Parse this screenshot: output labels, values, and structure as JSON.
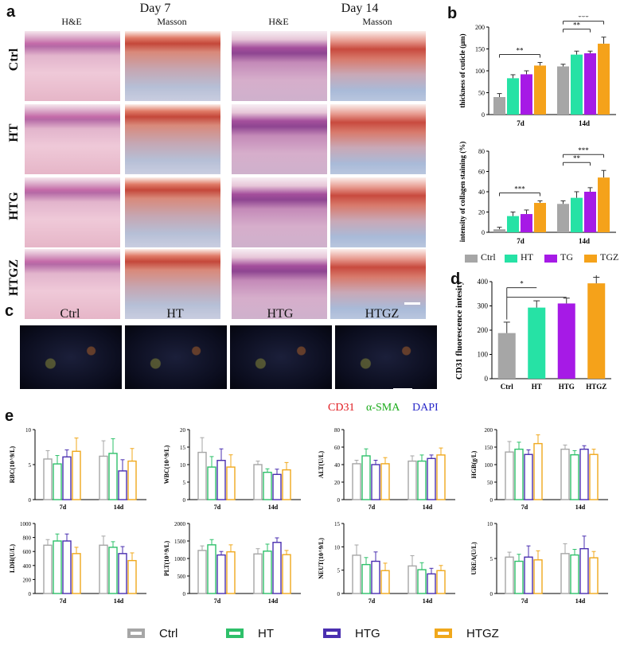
{
  "panel_a": {
    "label": "a",
    "day_headers": [
      "Day 7",
      "Day 14"
    ],
    "stain_headers": [
      "H&E",
      "Masson",
      "H&E",
      "Masson"
    ],
    "row_labels": [
      "Ctrl",
      "HT",
      "HTG",
      "HTGZ"
    ]
  },
  "panel_b": {
    "label": "b"
  },
  "panel_c": {
    "label": "c",
    "column_labels": [
      "Ctrl",
      "HT",
      "HTG",
      "HTGZ"
    ],
    "channels": [
      {
        "name": "CD31",
        "color": "#e0191e"
      },
      {
        "name": "α-SMA",
        "color": "#1aab1a"
      },
      {
        "name": "DAPI",
        "color": "#2727c9"
      }
    ]
  },
  "panel_d": {
    "label": "d"
  },
  "panel_e": {
    "label": "e"
  },
  "colors": {
    "Ctrl": "#a6a6a6",
    "HT": "#26e2a5",
    "TG": "#a61ae6",
    "TGZ": "#f5a21a",
    "HTG_outline": "#4a2fb0",
    "HTGZ_outline": "#f0a81c",
    "HT_outline": "#2ec06a"
  },
  "legend_b": [
    "Ctrl",
    "HT",
    "TG",
    "TGZ"
  ],
  "legend_e": [
    "Ctrl",
    "HT",
    "HTG",
    "HTGZ"
  ],
  "chart_data": [
    {
      "id": "b1",
      "type": "bar",
      "title": "",
      "ylabel": "thickness of cuticle (μm)",
      "categories": [
        "7d",
        "14d"
      ],
      "ylim": [
        0,
        200
      ],
      "yticks": [
        0,
        50,
        100,
        150,
        200
      ],
      "series": [
        {
          "name": "Ctrl",
          "values": [
            40,
            110
          ],
          "errors": [
            8,
            5
          ]
        },
        {
          "name": "HT",
          "values": [
            83,
            137
          ],
          "errors": [
            8,
            8
          ]
        },
        {
          "name": "TG",
          "values": [
            92,
            140
          ],
          "errors": [
            8,
            5
          ]
        },
        {
          "name": "TGZ",
          "values": [
            112,
            162
          ],
          "errors": [
            7,
            15
          ]
        }
      ],
      "significance": [
        {
          "group": "7d",
          "label": "**"
        },
        {
          "group": "14d",
          "label": "***"
        },
        {
          "group": "14d",
          "label": "**"
        }
      ]
    },
    {
      "id": "b2",
      "type": "bar",
      "title": "",
      "ylabel": "intensity of collagen staining (%)",
      "categories": [
        "7d",
        "14d"
      ],
      "ylim": [
        0,
        80
      ],
      "yticks": [
        0,
        20,
        40,
        60,
        80
      ],
      "series": [
        {
          "name": "Ctrl",
          "values": [
            3,
            28
          ],
          "errors": [
            2,
            3
          ]
        },
        {
          "name": "HT",
          "values": [
            16,
            34
          ],
          "errors": [
            4,
            6
          ]
        },
        {
          "name": "TG",
          "values": [
            18,
            40
          ],
          "errors": [
            4,
            4
          ]
        },
        {
          "name": "TGZ",
          "values": [
            29,
            54
          ],
          "errors": [
            2,
            7
          ]
        }
      ],
      "significance": [
        {
          "group": "7d",
          "label": "***"
        },
        {
          "group": "14d",
          "label": "***"
        },
        {
          "group": "14d",
          "label": "**"
        }
      ]
    },
    {
      "id": "d",
      "type": "bar",
      "title": "",
      "ylabel": "CD31 fluorescence intesity",
      "categories": [
        "Ctrl",
        "HT",
        "HTG",
        "HTGZ"
      ],
      "ylim": [
        0,
        400
      ],
      "yticks": [
        0,
        100,
        200,
        300,
        400
      ],
      "values": [
        188,
        293,
        310,
        393
      ],
      "errors": [
        45,
        28,
        22,
        25
      ],
      "significance": [
        "**",
        "*"
      ]
    },
    {
      "id": "e1",
      "type": "bar",
      "ylabel": "RBC(10^9/L)",
      "ylim": [
        0,
        10
      ],
      "yticks": [
        0,
        5,
        10
      ],
      "categories": [
        "7d",
        "14d"
      ],
      "series": [
        {
          "name": "Ctrl",
          "values": [
            5.8,
            6.2
          ],
          "errors": [
            1.2,
            2.2
          ]
        },
        {
          "name": "HT",
          "values": [
            5.1,
            6.6
          ],
          "errors": [
            1.2,
            2.1
          ]
        },
        {
          "name": "HTG",
          "values": [
            6.1,
            4.1
          ],
          "errors": [
            1.0,
            1.6
          ]
        },
        {
          "name": "HTGZ",
          "values": [
            6.9,
            5.5
          ],
          "errors": [
            1.9,
            1.8
          ]
        }
      ]
    },
    {
      "id": "e2",
      "type": "bar",
      "ylabel": "WBC(10^9/L)",
      "ylim": [
        0,
        20
      ],
      "yticks": [
        0,
        5,
        10,
        15,
        20
      ],
      "categories": [
        "7d",
        "14d"
      ],
      "series": [
        {
          "name": "Ctrl",
          "values": [
            13.5,
            10
          ],
          "errors": [
            4.2,
            1.0
          ]
        },
        {
          "name": "HT",
          "values": [
            9.3,
            7.8
          ],
          "errors": [
            3.0,
            1.0
          ]
        },
        {
          "name": "HTG",
          "values": [
            11.2,
            7.2
          ],
          "errors": [
            3.3,
            1.5
          ]
        },
        {
          "name": "HTGZ",
          "values": [
            9.3,
            8.5
          ],
          "errors": [
            3.5,
            2.1
          ]
        }
      ]
    },
    {
      "id": "e3",
      "type": "bar",
      "ylabel": "ALT(U/L)",
      "ylim": [
        0,
        80
      ],
      "yticks": [
        0,
        20,
        40,
        60,
        80
      ],
      "categories": [
        "7d",
        "14d"
      ],
      "series": [
        {
          "name": "Ctrl",
          "values": [
            41,
            44
          ],
          "errors": [
            4,
            6
          ]
        },
        {
          "name": "HT",
          "values": [
            50,
            44
          ],
          "errors": [
            8,
            7
          ]
        },
        {
          "name": "HTG",
          "values": [
            40,
            47
          ],
          "errors": [
            5,
            4
          ]
        },
        {
          "name": "HTGZ",
          "values": [
            41,
            51
          ],
          "errors": [
            7,
            8
          ]
        }
      ]
    },
    {
      "id": "e4",
      "type": "bar",
      "ylabel": "HGB(g/L)",
      "ylim": [
        0,
        200
      ],
      "yticks": [
        0,
        50,
        100,
        150,
        200
      ],
      "categories": [
        "7d",
        "14d"
      ],
      "series": [
        {
          "name": "Ctrl",
          "values": [
            136,
            144
          ],
          "errors": [
            30,
            12
          ]
        },
        {
          "name": "HT",
          "values": [
            144,
            128
          ],
          "errors": [
            20,
            12
          ]
        },
        {
          "name": "HTG",
          "values": [
            129,
            144
          ],
          "errors": [
            13,
            10
          ]
        },
        {
          "name": "HTGZ",
          "values": [
            160,
            129
          ],
          "errors": [
            25,
            15
          ]
        }
      ]
    },
    {
      "id": "e5",
      "type": "bar",
      "ylabel": "LDH(U/L)",
      "ylim": [
        0,
        1000
      ],
      "yticks": [
        0,
        200,
        400,
        600,
        800,
        1000
      ],
      "categories": [
        "7d",
        "14d"
      ],
      "series": [
        {
          "name": "Ctrl",
          "values": [
            690,
            690
          ],
          "errors": [
            80,
            130
          ]
        },
        {
          "name": "HT",
          "values": [
            750,
            660
          ],
          "errors": [
            100,
            80
          ]
        },
        {
          "name": "HTG",
          "values": [
            750,
            570
          ],
          "errors": [
            100,
            100
          ]
        },
        {
          "name": "HTGZ",
          "values": [
            570,
            470
          ],
          "errors": [
            90,
            110
          ]
        }
      ]
    },
    {
      "id": "e6",
      "type": "bar",
      "ylabel": "PLT(10^9/L)",
      "ylim": [
        0,
        2000
      ],
      "yticks": [
        0,
        500,
        1000,
        1500,
        2000
      ],
      "categories": [
        "7d",
        "14d"
      ],
      "series": [
        {
          "name": "Ctrl",
          "values": [
            1230,
            1130
          ],
          "errors": [
            130,
            150
          ]
        },
        {
          "name": "HT",
          "values": [
            1390,
            1210
          ],
          "errors": [
            150,
            200
          ]
        },
        {
          "name": "HTG",
          "values": [
            1100,
            1460
          ],
          "errors": [
            100,
            130
          ]
        },
        {
          "name": "HTGZ",
          "values": [
            1190,
            1110
          ],
          "errors": [
            200,
            120
          ]
        }
      ]
    },
    {
      "id": "e7",
      "type": "bar",
      "ylabel": "NEUT(10^9/L)",
      "ylim": [
        0,
        15
      ],
      "yticks": [
        0,
        5,
        10,
        15
      ],
      "categories": [
        "7d",
        "14d"
      ],
      "series": [
        {
          "name": "Ctrl",
          "values": [
            8.2,
            5.9
          ],
          "errors": [
            2.2,
            2.2
          ]
        },
        {
          "name": "HT",
          "values": [
            6.2,
            5.1
          ],
          "errors": [
            1.5,
            1.5
          ]
        },
        {
          "name": "HTG",
          "values": [
            6.9,
            4.2
          ],
          "errors": [
            2.0,
            1.2
          ]
        },
        {
          "name": "HTGZ",
          "values": [
            4.9,
            4.9
          ],
          "errors": [
            1.6,
            1.1
          ]
        }
      ]
    },
    {
      "id": "e8",
      "type": "bar",
      "ylabel": "UREA(U/L)",
      "ylim": [
        0,
        10
      ],
      "yticks": [
        0,
        5,
        10
      ],
      "categories": [
        "7d",
        "14d"
      ],
      "series": [
        {
          "name": "Ctrl",
          "values": [
            5.2,
            5.7
          ],
          "errors": [
            0.7,
            1.4
          ]
        },
        {
          "name": "HT",
          "values": [
            4.6,
            5.5
          ],
          "errors": [
            1.0,
            0.8
          ]
        },
        {
          "name": "HTG",
          "values": [
            5.2,
            6.4
          ],
          "errors": [
            1.6,
            1.8
          ]
        },
        {
          "name": "HTGZ",
          "values": [
            4.8,
            5.1
          ],
          "errors": [
            1.3,
            0.9
          ]
        }
      ]
    }
  ]
}
